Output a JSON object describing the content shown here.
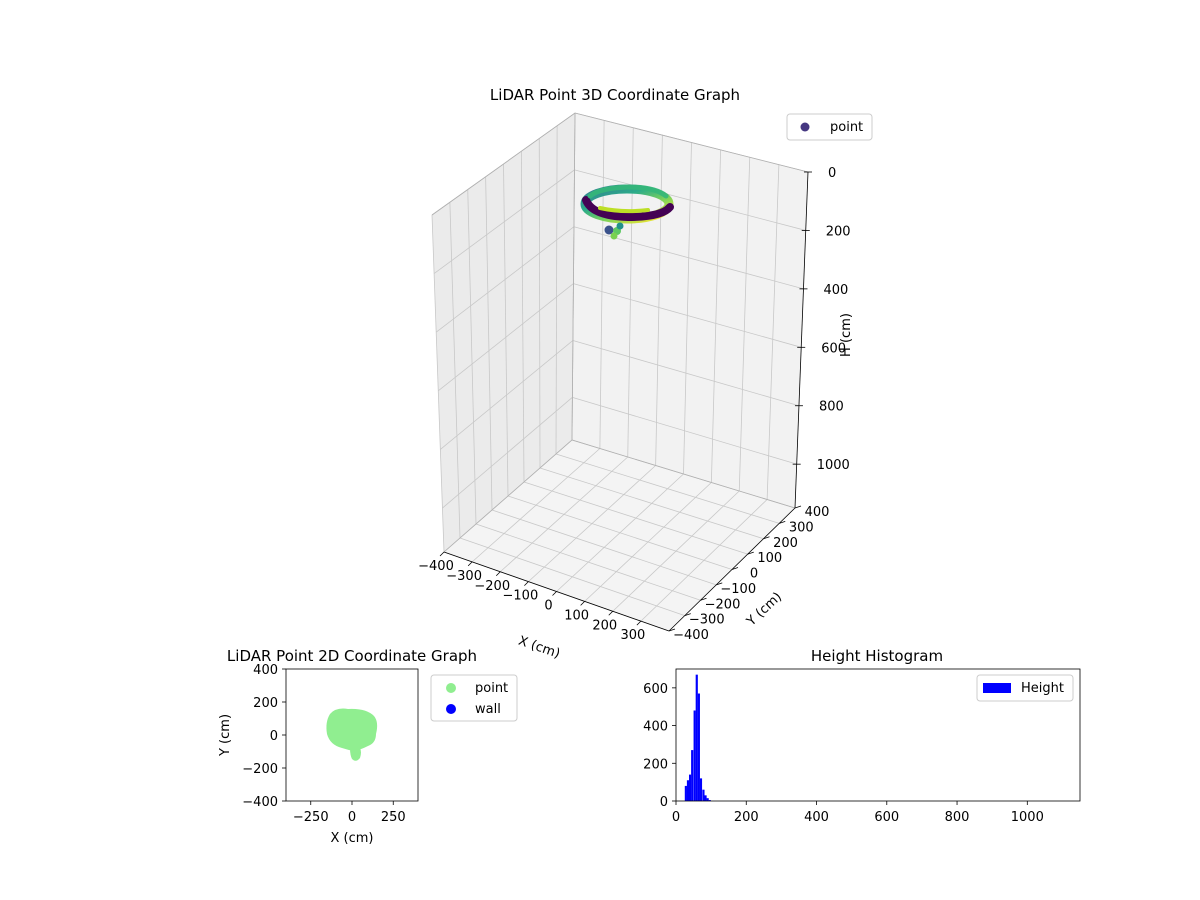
{
  "chart_data": [
    {
      "type": "scatter",
      "projection": "3d",
      "title": "LiDAR Point 3D Coordinate Graph",
      "xlabel": "X (cm)",
      "ylabel": "Y (cm)",
      "zlabel": "H (cm)",
      "xlim": [
        -400,
        400
      ],
      "ylim": [
        -400,
        400
      ],
      "zlim": [
        1150,
        0
      ],
      "x_ticks": [
        "−400",
        "−300",
        "−200",
        "−100",
        "0",
        "100",
        "200",
        "300"
      ],
      "y_ticks": [
        "−400",
        "−300",
        "−200",
        "−100",
        "0",
        "100",
        "200",
        "300",
        "400"
      ],
      "z_ticks": [
        "0",
        "200",
        "400",
        "600",
        "800",
        "1000"
      ],
      "colormap": "viridis",
      "grid": true,
      "legend": {
        "position": "top-right",
        "entries": [
          "point"
        ]
      },
      "series": [
        {
          "name": "point",
          "color": "#453781",
          "description_shape": "elliptical ring of points",
          "x_range": [
            -200,
            120
          ],
          "y_range": [
            -130,
            160
          ],
          "h_range": [
            40,
            110
          ]
        }
      ]
    },
    {
      "type": "scatter",
      "title": "LiDAR Point 2D Coordinate Graph",
      "xlabel": "X (cm)",
      "ylabel": "Y (cm)",
      "xlim": [
        -400,
        400
      ],
      "ylim": [
        -400,
        400
      ],
      "x_ticks": [
        "−250",
        "0",
        "250"
      ],
      "y_ticks": [
        "400",
        "200",
        "0",
        "−200",
        "−400"
      ],
      "legend": {
        "position": "outside-right",
        "entries": [
          "point",
          "wall"
        ]
      },
      "series": [
        {
          "name": "point",
          "color": "#90ee90",
          "x_range": [
            -160,
            140
          ],
          "y_range": [
            -150,
            150
          ]
        },
        {
          "name": "wall",
          "color": "#0000ff",
          "x": [],
          "y": []
        }
      ]
    },
    {
      "type": "bar",
      "subtype": "histogram",
      "title": "Height Histogram",
      "xlabel": "",
      "ylabel": "",
      "xlim": [
        0,
        1150
      ],
      "ylim": [
        0,
        700
      ],
      "x_ticks": [
        "0",
        "200",
        "400",
        "600",
        "800",
        "1000"
      ],
      "y_ticks": [
        "0",
        "200",
        "400",
        "600"
      ],
      "color": "#0000ff",
      "legend": {
        "position": "top-right",
        "entries": [
          "Height"
        ]
      },
      "bin_width": 6.2,
      "bins_start": [
        25,
        31,
        37,
        43,
        50,
        56,
        62,
        68,
        75,
        81,
        87,
        93
      ],
      "counts": [
        80,
        110,
        140,
        270,
        480,
        670,
        570,
        120,
        60,
        30,
        15,
        5
      ],
      "series": [
        {
          "name": "Height"
        }
      ]
    }
  ]
}
